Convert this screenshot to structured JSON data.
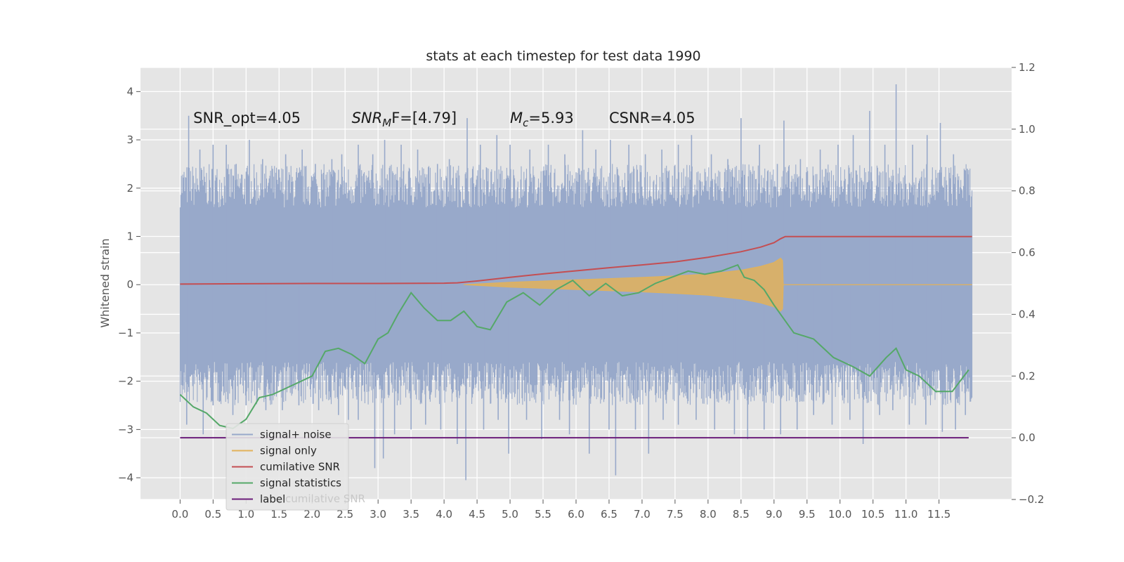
{
  "chart_data": {
    "type": "line",
    "title": "stats at each timestep for test data 1990",
    "xlabel": "",
    "ylabel": "Whitened strain",
    "xlim": [
      -0.6,
      12.6
    ],
    "ylim": [
      -4.45,
      4.5
    ],
    "y2lim": [
      -0.2,
      1.2
    ],
    "grid": true,
    "x_ticks": [
      "0.0",
      "0.5",
      "1.0",
      "1.5",
      "2.0",
      "2.5",
      "3.0",
      "3.5",
      "4.0",
      "4.5",
      "5.0",
      "5.5",
      "6.0",
      "6.5",
      "7.0",
      "7.5",
      "8.0",
      "8.5",
      "9.0",
      "9.5",
      "10.0",
      "10.5",
      "11.0",
      "11.5"
    ],
    "y_ticks": [
      "4",
      "3",
      "2",
      "1",
      "0",
      "−1",
      "−2",
      "−3",
      "−4"
    ],
    "y2_ticks": [
      "1.2",
      "1.0",
      "0.8",
      "0.6",
      "0.4",
      "0.2",
      "0.0",
      "−0.2"
    ],
    "annotations": [
      {
        "text": "SNR_opt=4.05",
        "x": 0.2,
        "y": 3.35
      },
      {
        "text_main": "SNR",
        "text_sub": "M",
        "text_tail": "F=[4.79]",
        "x": 2.6,
        "y": 3.35
      },
      {
        "text_main": "M",
        "text_sub": "c",
        "text_tail": "=5.93",
        "x": 5.0,
        "y": 3.35
      },
      {
        "text": "CSNR=4.05",
        "x": 6.5,
        "y": 3.35
      }
    ],
    "legend": {
      "placement": "lower-left",
      "entries": [
        "signal+ noise",
        "signal only",
        "cumilative SNR",
        "signal statistics",
        "label"
      ],
      "ghost_text": "cumilative SNR"
    },
    "series": [
      {
        "name": "signal+ noise",
        "axis": "left",
        "color": "#98a9ca",
        "band": {
          "x0": 0.0,
          "x1": 12.0,
          "low": -1.6,
          "high": 1.6
        },
        "spikes": [
          [
            0.13,
            3.5
          ],
          [
            0.3,
            2.8
          ],
          [
            0.5,
            2.9
          ],
          [
            0.7,
            2.9
          ],
          [
            0.85,
            2.5
          ],
          [
            1.05,
            3.0
          ],
          [
            1.25,
            2.6
          ],
          [
            1.4,
            2.4
          ],
          [
            1.6,
            2.7
          ],
          [
            1.85,
            2.8
          ],
          [
            2.05,
            2.5
          ],
          [
            2.3,
            2.6
          ],
          [
            2.45,
            2.7
          ],
          [
            2.7,
            2.9
          ],
          [
            2.92,
            2.7
          ],
          [
            3.1,
            3.0
          ],
          [
            3.35,
            2.9
          ],
          [
            3.6,
            2.8
          ],
          [
            3.9,
            2.5
          ],
          [
            4.08,
            2.6
          ],
          [
            4.35,
            3.45
          ],
          [
            4.55,
            2.9
          ],
          [
            4.8,
            3.1
          ],
          [
            5.0,
            2.9
          ],
          [
            5.3,
            2.8
          ],
          [
            5.58,
            2.9
          ],
          [
            5.83,
            2.7
          ],
          [
            6.1,
            3.2
          ],
          [
            6.3,
            2.8
          ],
          [
            6.52,
            3.0
          ],
          [
            6.8,
            2.9
          ],
          [
            7.05,
            2.7
          ],
          [
            7.3,
            2.8
          ],
          [
            7.55,
            2.9
          ],
          [
            7.75,
            3.1
          ],
          [
            8.05,
            2.7
          ],
          [
            8.3,
            2.6
          ],
          [
            8.5,
            3.45
          ],
          [
            8.78,
            2.9
          ],
          [
            9.05,
            2.5
          ],
          [
            9.15,
            3.4
          ],
          [
            9.4,
            2.6
          ],
          [
            9.7,
            2.8
          ],
          [
            9.97,
            2.9
          ],
          [
            10.2,
            3.1
          ],
          [
            10.45,
            3.6
          ],
          [
            10.68,
            2.9
          ],
          [
            10.85,
            4.15
          ],
          [
            11.1,
            2.9
          ],
          [
            11.32,
            3.1
          ],
          [
            11.52,
            3.35
          ],
          [
            11.72,
            2.7
          ],
          [
            11.93,
            2.4
          ],
          [
            0.1,
            -2.9
          ],
          [
            0.35,
            -3.1
          ],
          [
            0.5,
            -2.5
          ],
          [
            0.8,
            -2.7
          ],
          [
            1.0,
            -2.5
          ],
          [
            1.3,
            -2.6
          ],
          [
            1.55,
            -2.6
          ],
          [
            1.8,
            -2.5
          ],
          [
            2.1,
            -2.6
          ],
          [
            2.4,
            -2.7
          ],
          [
            2.55,
            -2.8
          ],
          [
            2.7,
            -2.8
          ],
          [
            2.95,
            -3.8
          ],
          [
            3.08,
            -3.6
          ],
          [
            3.25,
            -3.1
          ],
          [
            3.5,
            -3.0
          ],
          [
            3.72,
            -2.9
          ],
          [
            3.95,
            -3.0
          ],
          [
            4.2,
            -3.3
          ],
          [
            4.33,
            -4.05
          ],
          [
            4.6,
            -3.0
          ],
          [
            4.82,
            -2.8
          ],
          [
            4.98,
            -3.5
          ],
          [
            5.25,
            -2.8
          ],
          [
            5.48,
            -3.2
          ],
          [
            5.75,
            -2.8
          ],
          [
            5.9,
            -3.1
          ],
          [
            6.2,
            -3.5
          ],
          [
            6.5,
            -3.0
          ],
          [
            6.6,
            -3.95
          ],
          [
            6.9,
            -3.0
          ],
          [
            7.1,
            -3.5
          ],
          [
            7.32,
            -2.8
          ],
          [
            7.55,
            -2.9
          ],
          [
            7.82,
            -2.8
          ],
          [
            8.1,
            -3.0
          ],
          [
            8.4,
            -3.1
          ],
          [
            8.6,
            -3.2
          ],
          [
            8.85,
            -3.0
          ],
          [
            9.1,
            -3.1
          ],
          [
            9.35,
            -3.0
          ],
          [
            9.6,
            -2.7
          ],
          [
            9.88,
            -2.9
          ],
          [
            10.15,
            -2.8
          ],
          [
            10.35,
            -3.3
          ],
          [
            10.6,
            -2.7
          ],
          [
            10.8,
            -2.6
          ],
          [
            11.05,
            -2.9
          ],
          [
            11.3,
            -2.9
          ],
          [
            11.55,
            -3.05
          ],
          [
            11.75,
            -3.0
          ],
          [
            11.9,
            -2.7
          ]
        ]
      },
      {
        "name": "signal only",
        "axis": "left",
        "color": "#e2b25a",
        "envelope": [
          [
            4.3,
            0.0
          ],
          [
            5.0,
            0.05
          ],
          [
            6.0,
            0.1
          ],
          [
            7.0,
            0.15
          ],
          [
            7.5,
            0.18
          ],
          [
            8.0,
            0.22
          ],
          [
            8.5,
            0.3
          ],
          [
            8.8,
            0.38
          ],
          [
            9.0,
            0.46
          ],
          [
            9.1,
            0.55
          ],
          [
            9.13,
            0.5
          ],
          [
            9.14,
            0.0
          ]
        ],
        "tail": [
          9.14,
          12.0
        ]
      },
      {
        "name": "cumilative SNR",
        "axis": "right",
        "color": "#c44e52",
        "x": [
          0.0,
          1.0,
          2.0,
          3.0,
          4.0,
          4.2,
          4.5,
          5.0,
          5.5,
          6.0,
          6.5,
          7.0,
          7.5,
          8.0,
          8.5,
          8.8,
          9.0,
          9.1,
          9.17,
          9.5,
          10.0,
          11.0,
          12.0
        ],
        "y": [
          0.498,
          0.499,
          0.5,
          0.5,
          0.501,
          0.502,
          0.508,
          0.52,
          0.531,
          0.541,
          0.551,
          0.56,
          0.57,
          0.585,
          0.603,
          0.618,
          0.632,
          0.645,
          0.652,
          0.652,
          0.652,
          0.652,
          0.652
        ]
      },
      {
        "name": "signal statistics",
        "axis": "right",
        "color": "#55a868",
        "x": [
          0.0,
          0.2,
          0.4,
          0.6,
          0.8,
          1.0,
          1.2,
          1.4,
          1.6,
          1.8,
          2.0,
          2.2,
          2.4,
          2.6,
          2.8,
          3.0,
          3.15,
          3.3,
          3.5,
          3.7,
          3.9,
          4.1,
          4.3,
          4.5,
          4.7,
          4.95,
          5.2,
          5.45,
          5.7,
          5.95,
          6.2,
          6.45,
          6.7,
          6.95,
          7.2,
          7.45,
          7.7,
          7.95,
          8.2,
          8.45,
          8.55,
          8.7,
          8.85,
          9.0,
          9.3,
          9.6,
          9.9,
          10.2,
          10.45,
          10.7,
          10.85,
          11.0,
          11.2,
          11.45,
          11.7,
          11.95
        ],
        "y": [
          0.14,
          0.1,
          0.08,
          0.04,
          0.03,
          0.06,
          0.13,
          0.14,
          0.16,
          0.18,
          0.2,
          0.28,
          0.29,
          0.27,
          0.24,
          0.32,
          0.34,
          0.4,
          0.47,
          0.42,
          0.38,
          0.38,
          0.41,
          0.36,
          0.35,
          0.44,
          0.47,
          0.43,
          0.48,
          0.51,
          0.46,
          0.5,
          0.46,
          0.47,
          0.5,
          0.52,
          0.54,
          0.53,
          0.54,
          0.56,
          0.52,
          0.51,
          0.48,
          0.43,
          0.34,
          0.32,
          0.26,
          0.23,
          0.2,
          0.26,
          0.29,
          0.22,
          0.2,
          0.15,
          0.15,
          0.22
        ]
      },
      {
        "name": "label",
        "axis": "right",
        "color": "#6b1d7a",
        "x": [
          0.0,
          11.95
        ],
        "y": [
          0.0,
          0.0
        ]
      }
    ]
  }
}
